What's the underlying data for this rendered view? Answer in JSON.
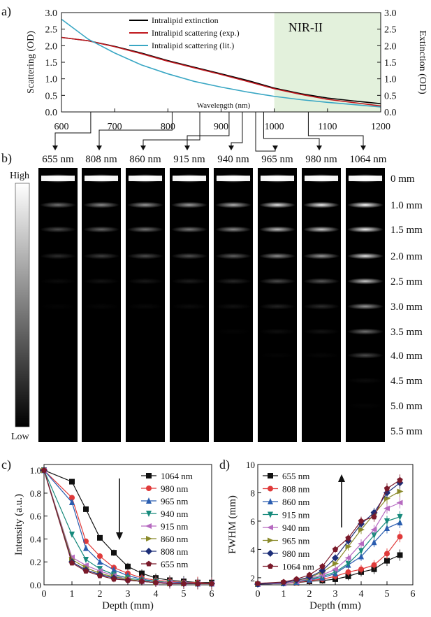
{
  "panel_labels": {
    "a": "a)",
    "b": "b)",
    "c": "c)",
    "d": "d)"
  },
  "colors": {
    "extinction": "#000000",
    "scattering_exp": "#c0181e",
    "scattering_lit": "#3aa7c4",
    "nir_region": "#e3f1dc",
    "wl_1064": "#111111",
    "wl_980": "#e03a3a",
    "wl_965": "#2a5db0",
    "wl_940": "#178a7c",
    "wl_915": "#b66ac0",
    "wl_860": "#8a8a2a",
    "wl_808": "#1c2e78",
    "wl_655": "#7a1a2a"
  },
  "chart_data": [
    {
      "id": "a",
      "type": "line",
      "ylabel": "Scattering (OD)",
      "ylabel_right": "Extinction (OD)",
      "xlabel": "Wavelength (nm)",
      "region_label": "NIR-II",
      "region": [
        1000,
        1200
      ],
      "xlim": [
        600,
        1200
      ],
      "ylim": [
        0,
        3.0
      ],
      "xticks": [
        "600",
        "700",
        "800",
        "900",
        "1000",
        "1100",
        "1200"
      ],
      "yticks": [
        "0.0",
        "0.5",
        "1.0",
        "1.5",
        "2.0",
        "2.5",
        "3.0"
      ],
      "series": [
        {
          "name": "Intralipid extinction",
          "color_key": "extinction",
          "x": [
            600,
            650,
            700,
            750,
            800,
            850,
            900,
            950,
            1000,
            1050,
            1100,
            1150,
            1200
          ],
          "y": [
            2.25,
            2.15,
            1.98,
            1.78,
            1.55,
            1.35,
            1.15,
            0.95,
            0.72,
            0.55,
            0.42,
            0.33,
            0.25
          ]
        },
        {
          "name": "Intralipid scattering (exp.)",
          "color_key": "scattering_exp",
          "x": [
            600,
            650,
            700,
            750,
            800,
            850,
            900,
            950,
            1000,
            1050,
            1100,
            1150,
            1200
          ],
          "y": [
            2.25,
            2.15,
            1.97,
            1.76,
            1.53,
            1.33,
            1.13,
            0.92,
            0.7,
            0.53,
            0.38,
            0.28,
            0.18
          ]
        },
        {
          "name": "Intralipid scattering (lit.)",
          "color_key": "scattering_lit",
          "x": [
            600,
            650,
            700,
            750,
            800,
            850,
            900,
            950,
            1000,
            1050,
            1100,
            1150,
            1200
          ],
          "y": [
            2.8,
            2.2,
            1.78,
            1.42,
            1.15,
            0.92,
            0.75,
            0.6,
            0.47,
            0.37,
            0.29,
            0.22,
            0.15
          ]
        }
      ]
    },
    {
      "id": "b",
      "type": "heatmap",
      "colorbar_high": "High",
      "colorbar_low": "Low",
      "wavelengths": [
        {
          "label": "655 nm",
          "nm": 655
        },
        {
          "label": "808 nm",
          "nm": 808
        },
        {
          "label": "860 nm",
          "nm": 860
        },
        {
          "label": "915 nm",
          "nm": 915
        },
        {
          "label": "940 nm",
          "nm": 940
        },
        {
          "label": "965 nm",
          "nm": 965
        },
        {
          "label": "980 nm",
          "nm": 980
        },
        {
          "label": "1064 nm",
          "nm": 1064
        }
      ],
      "depths": [
        "0 mm",
        "1.0 mm",
        "1.5 mm",
        "2.0 mm",
        "2.5 mm",
        "3.0 mm",
        "3.5 mm",
        "4.0 mm",
        "4.5 mm",
        "5.0 mm",
        "5.5 mm"
      ],
      "brightness": [
        [
          1.0,
          0.45,
          0.3,
          0.18,
          0.05,
          0.02,
          0.0,
          0.0,
          0.0,
          0.0,
          0.0
        ],
        [
          1.0,
          0.55,
          0.4,
          0.25,
          0.08,
          0.03,
          0.0,
          0.0,
          0.0,
          0.0,
          0.0
        ],
        [
          1.0,
          0.6,
          0.45,
          0.3,
          0.1,
          0.04,
          0.0,
          0.0,
          0.0,
          0.0,
          0.0
        ],
        [
          1.0,
          0.62,
          0.48,
          0.32,
          0.12,
          0.05,
          0.0,
          0.0,
          0.0,
          0.0,
          0.0
        ],
        [
          1.0,
          0.7,
          0.55,
          0.38,
          0.16,
          0.07,
          0.02,
          0.0,
          0.0,
          0.0,
          0.0
        ],
        [
          1.0,
          0.9,
          0.75,
          0.55,
          0.3,
          0.14,
          0.06,
          0.02,
          0.0,
          0.0,
          0.0
        ],
        [
          1.0,
          0.95,
          0.8,
          0.6,
          0.35,
          0.18,
          0.08,
          0.03,
          0.0,
          0.0,
          0.0
        ],
        [
          1.0,
          1.0,
          0.95,
          0.9,
          0.8,
          0.6,
          0.45,
          0.3,
          0.05,
          0.02,
          0.0
        ]
      ]
    },
    {
      "id": "c",
      "type": "line",
      "xlabel": "Depth (mm)",
      "ylabel": "Intensity (a.u.)",
      "xlim": [
        0,
        6
      ],
      "ylim": [
        0,
        1.05
      ],
      "xticks": [
        "0",
        "1",
        "2",
        "3",
        "4",
        "5",
        "6"
      ],
      "yticks": [
        "0.0",
        "0.2",
        "0.4",
        "0.6",
        "0.8",
        "1.0"
      ],
      "x": [
        0,
        1,
        1.5,
        2,
        2.5,
        3,
        3.5,
        4,
        4.5,
        5,
        5.5,
        6
      ],
      "series": [
        {
          "name": "1064 nm",
          "marker": "square",
          "color_key": "wl_1064",
          "y": [
            1.0,
            0.9,
            0.66,
            0.41,
            0.28,
            0.16,
            0.1,
            0.06,
            0.04,
            0.03,
            0.02,
            0.02
          ]
        },
        {
          "name": "980 nm",
          "marker": "circle",
          "color_key": "wl_980",
          "y": [
            1.0,
            0.76,
            0.38,
            0.25,
            0.15,
            0.1,
            0.06,
            0.04,
            0.03,
            0.02,
            0.02,
            0.01
          ]
        },
        {
          "name": "965 nm",
          "marker": "triangle-up",
          "color_key": "wl_965",
          "y": [
            1.0,
            0.72,
            0.32,
            0.2,
            0.13,
            0.08,
            0.05,
            0.03,
            0.02,
            0.02,
            0.01,
            0.01
          ]
        },
        {
          "name": "940 nm",
          "marker": "triangle-down",
          "color_key": "wl_940",
          "y": [
            1.0,
            0.44,
            0.22,
            0.14,
            0.09,
            0.06,
            0.04,
            0.03,
            0.02,
            0.01,
            0.01,
            0.01
          ]
        },
        {
          "name": "915 nm",
          "marker": "triangle-left",
          "color_key": "wl_915",
          "y": [
            1.0,
            0.24,
            0.17,
            0.12,
            0.08,
            0.05,
            0.03,
            0.02,
            0.02,
            0.01,
            0.01,
            0.01
          ]
        },
        {
          "name": "860 nm",
          "marker": "triangle-right",
          "color_key": "wl_860",
          "y": [
            1.0,
            0.22,
            0.15,
            0.1,
            0.07,
            0.05,
            0.03,
            0.02,
            0.01,
            0.01,
            0.01,
            0.01
          ]
        },
        {
          "name": "808 nm",
          "marker": "diamond",
          "color_key": "wl_808",
          "y": [
            1.0,
            0.2,
            0.13,
            0.09,
            0.06,
            0.04,
            0.03,
            0.02,
            0.01,
            0.01,
            0.01,
            0.01
          ]
        },
        {
          "name": "655 nm",
          "marker": "pentagon",
          "color_key": "wl_655",
          "y": [
            1.0,
            0.19,
            0.12,
            0.08,
            0.05,
            0.04,
            0.03,
            0.02,
            0.01,
            0.01,
            0.01,
            0.01
          ]
        }
      ]
    },
    {
      "id": "d",
      "type": "line",
      "xlabel": "Depth (mm)",
      "ylabel": "FWHM (mm)",
      "xlim": [
        0,
        6
      ],
      "ylim": [
        1.5,
        10
      ],
      "xticks": [
        "0",
        "1",
        "2",
        "3",
        "4",
        "5",
        "6"
      ],
      "yticks": [
        "2",
        "4",
        "6",
        "8",
        "10"
      ],
      "x": [
        0,
        1,
        1.5,
        2,
        2.5,
        3,
        3.5,
        4,
        4.5,
        5,
        5.5
      ],
      "series": [
        {
          "name": "655 nm",
          "marker": "square",
          "color_key": "wl_1064",
          "y": [
            1.55,
            1.6,
            1.65,
            1.75,
            1.8,
            1.9,
            2.1,
            2.4,
            2.6,
            3.2,
            3.6
          ]
        },
        {
          "name": "808 nm",
          "marker": "circle",
          "color_key": "wl_980",
          "y": [
            1.55,
            1.6,
            1.65,
            1.8,
            1.9,
            2.1,
            2.4,
            2.6,
            2.9,
            3.7,
            4.9
          ]
        },
        {
          "name": "860 nm",
          "marker": "triangle-up",
          "color_key": "wl_965",
          "y": [
            1.55,
            1.6,
            1.7,
            1.85,
            2.0,
            2.3,
            2.9,
            3.5,
            4.5,
            5.5,
            5.9
          ]
        },
        {
          "name": "915 nm",
          "marker": "triangle-down",
          "color_key": "wl_940",
          "y": [
            1.55,
            1.6,
            1.7,
            1.9,
            2.1,
            2.4,
            3.0,
            3.9,
            5.0,
            6.0,
            6.3
          ]
        },
        {
          "name": "940 nm",
          "marker": "triangle-left",
          "color_key": "wl_915",
          "y": [
            1.55,
            1.6,
            1.72,
            1.95,
            2.2,
            2.6,
            3.4,
            4.4,
            5.4,
            6.9,
            7.3
          ]
        },
        {
          "name": "965 nm",
          "marker": "triangle-right",
          "color_key": "wl_860",
          "y": [
            1.55,
            1.65,
            1.8,
            2.0,
            2.4,
            3.0,
            4.2,
            5.4,
            6.5,
            7.6,
            8.1
          ]
        },
        {
          "name": "980 nm",
          "marker": "diamond",
          "color_key": "wl_808",
          "y": [
            1.55,
            1.65,
            1.82,
            2.05,
            2.5,
            3.4,
            4.6,
            5.8,
            6.6,
            8.0,
            8.7
          ]
        },
        {
          "name": "1064 nm",
          "marker": "pentagon",
          "color_key": "wl_655",
          "y": [
            1.6,
            1.7,
            1.9,
            2.2,
            2.8,
            4.0,
            4.8,
            6.0,
            6.3,
            8.3,
            8.9
          ]
        }
      ]
    }
  ]
}
